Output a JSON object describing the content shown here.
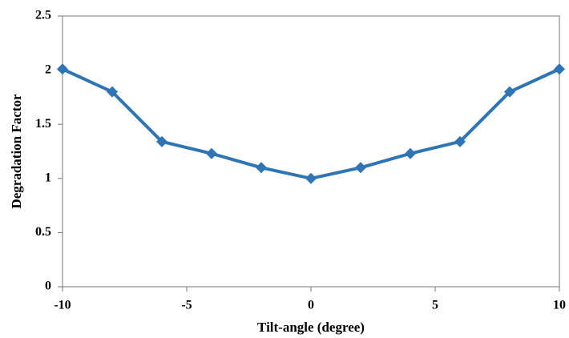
{
  "chart_data": {
    "type": "line",
    "x_label": "Tilt-angle (degree)",
    "y_label": "Degradation Factor",
    "x": [
      -10,
      -8,
      -6,
      -4,
      -2,
      0,
      2,
      4,
      6,
      8,
      10
    ],
    "series": [
      {
        "name": "Degradation Factor",
        "color": "#2e75b6",
        "values": [
          2.01,
          1.8,
          1.34,
          1.23,
          1.1,
          1.0,
          1.1,
          1.23,
          1.34,
          1.8,
          2.01
        ]
      }
    ],
    "xlim": [
      -10,
      10
    ],
    "xticks": [
      -10,
      -5,
      0,
      5,
      10
    ],
    "ylim": [
      0,
      2.5
    ],
    "yticks": [
      0,
      0.5,
      1,
      1.5,
      2,
      2.5
    ],
    "grid": false
  }
}
